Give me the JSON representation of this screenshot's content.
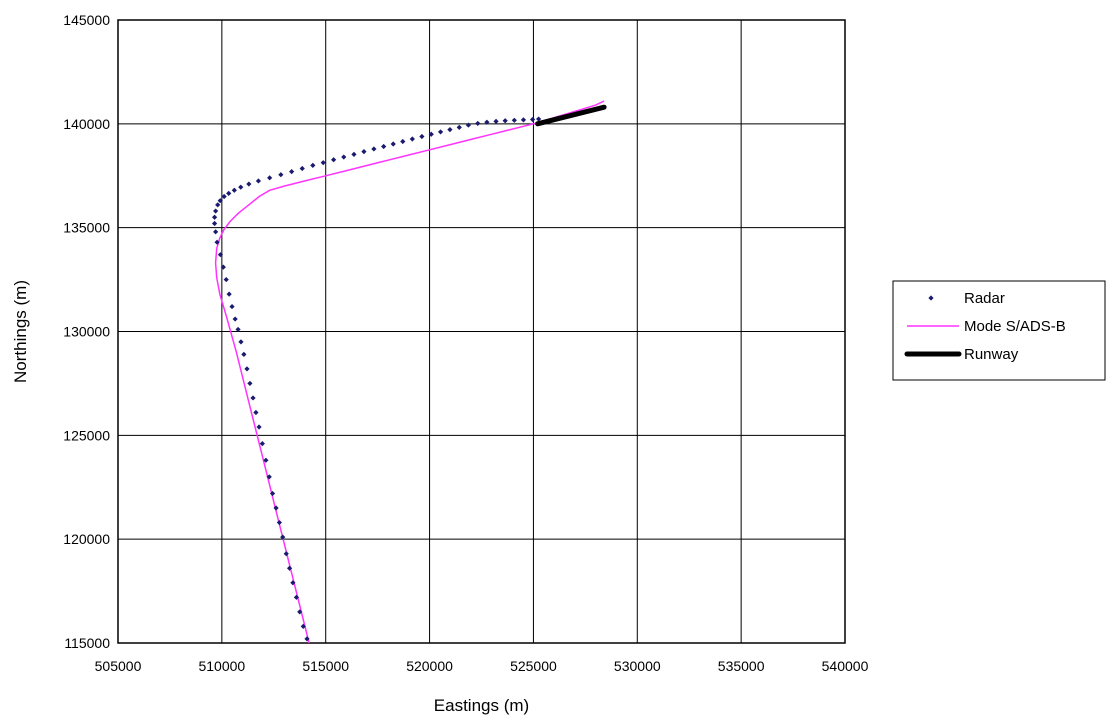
{
  "chart_data": {
    "type": "scatter",
    "title": "",
    "xlabel": "Eastings (m)",
    "ylabel": "Northings (m)",
    "xlim": [
      505000,
      540000
    ],
    "ylim": [
      115000,
      145000
    ],
    "x_ticks": [
      "505000",
      "510000",
      "515000",
      "520000",
      "525000",
      "530000",
      "535000",
      "540000"
    ],
    "y_ticks": [
      "115000",
      "120000",
      "125000",
      "130000",
      "135000",
      "140000",
      "145000"
    ],
    "grid": true,
    "legend_position": "right",
    "colors": {
      "radar": "#1a1a6e",
      "mode_s": "#ff33ff",
      "runway": "#000000"
    },
    "series": [
      {
        "name": "Radar",
        "style": "markers",
        "x": [
          514100,
          513920,
          513750,
          513590,
          513420,
          513260,
          513100,
          512930,
          512770,
          512610,
          512440,
          512280,
          512120,
          511950,
          511790,
          511640,
          511500,
          511350,
          511210,
          511060,
          510920,
          510780,
          510640,
          510490,
          510350,
          510210,
          510070,
          509930,
          509770,
          509700,
          509650,
          509650,
          509700,
          509800,
          509920,
          510110,
          510330,
          510600,
          510910,
          511300,
          511760,
          512300,
          512840,
          513360,
          513870,
          514380,
          514880,
          515380,
          515870,
          516360,
          516840,
          517320,
          517790,
          518250,
          518710,
          519170,
          519630,
          520080,
          520530,
          520980,
          521430,
          521870,
          522320,
          522760,
          523200,
          523640,
          524080,
          524520,
          524960,
          525250
        ],
        "y": [
          115200,
          115800,
          116500,
          117200,
          117900,
          118600,
          119300,
          120100,
          120800,
          121500,
          122200,
          123000,
          123800,
          124600,
          125400,
          126100,
          126800,
          127500,
          128200,
          128900,
          129500,
          130100,
          130600,
          131200,
          131800,
          132500,
          133100,
          133700,
          134300,
          134800,
          135200,
          135500,
          135800,
          136100,
          136300,
          136500,
          136650,
          136800,
          136950,
          137100,
          137250,
          137400,
          137550,
          137700,
          137850,
          138000,
          138130,
          138270,
          138400,
          138530,
          138660,
          138790,
          138910,
          139030,
          139150,
          139270,
          139390,
          139500,
          139610,
          139720,
          139830,
          139940,
          140020,
          140080,
          140120,
          140150,
          140170,
          140190,
          140210,
          140230
        ]
      },
      {
        "name": "Mode S/ADS-B",
        "style": "line",
        "x": [
          514200,
          513500,
          512800,
          512100,
          511400,
          510700,
          510200,
          509900,
          509750,
          509700,
          509750,
          509900,
          510100,
          510400,
          510800,
          511300,
          511800,
          512300,
          513000,
          514000,
          515000,
          516000,
          517000,
          518000,
          519000,
          520000,
          521000,
          522000,
          523000,
          524000,
          525000,
          526000,
          527000,
          528000,
          528400
        ],
        "y": [
          115000,
          117800,
          120600,
          123400,
          126200,
          129000,
          130800,
          131800,
          132600,
          133300,
          134000,
          134500,
          134900,
          135300,
          135700,
          136100,
          136500,
          136800,
          137000,
          137250,
          137500,
          137750,
          138000,
          138250,
          138500,
          138750,
          139000,
          139250,
          139500,
          139750,
          140000,
          140300,
          140600,
          140900,
          141100
        ]
      },
      {
        "name": "Runway",
        "style": "thick-line",
        "x": [
          525200,
          528400
        ],
        "y": [
          140000,
          140800
        ]
      }
    ]
  }
}
